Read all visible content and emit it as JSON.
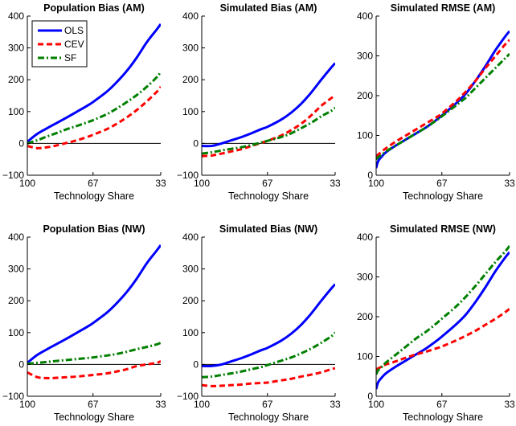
{
  "chart_data": [
    {
      "type": "line",
      "title": "Population Bias (AM)",
      "xlabel": "Technology Share",
      "ylabel": "",
      "x_ticks": [
        100,
        67,
        33
      ],
      "x_range": [
        100,
        33
      ],
      "ylim": [
        -100,
        400
      ],
      "y_ticks": [
        -100,
        0,
        100,
        200,
        300,
        400
      ],
      "zero_line": true,
      "legend": {
        "placement": "top-left",
        "entries": [
          "OLS",
          "CEV",
          "SF"
        ]
      },
      "x": [
        100,
        95,
        90,
        85,
        80,
        75,
        70,
        67,
        60,
        55,
        50,
        45,
        40,
        35,
        33
      ],
      "series": [
        {
          "name": "OLS",
          "values": [
            5,
            30,
            48,
            65,
            82,
            100,
            118,
            130,
            163,
            193,
            228,
            270,
            318,
            358,
            375
          ]
        },
        {
          "name": "CEV",
          "values": [
            -8,
            -15,
            -12,
            -6,
            2,
            10,
            20,
            27,
            45,
            62,
            82,
            105,
            132,
            162,
            178
          ]
        },
        {
          "name": "SF",
          "values": [
            0,
            10,
            22,
            33,
            45,
            55,
            66,
            73,
            92,
            110,
            130,
            152,
            178,
            208,
            225
          ]
        }
      ]
    },
    {
      "type": "line",
      "title": "Simulated Bias (AM)",
      "xlabel": "Technology Share",
      "ylabel": "",
      "x_ticks": [
        100,
        67,
        33
      ],
      "x_range": [
        100,
        33
      ],
      "ylim": [
        -100,
        400
      ],
      "y_ticks": [
        -100,
        0,
        100,
        200,
        300,
        400
      ],
      "zero_line": true,
      "x": [
        100,
        95,
        90,
        85,
        80,
        75,
        70,
        67,
        60,
        55,
        50,
        45,
        40,
        35,
        33
      ],
      "series": [
        {
          "name": "OLS",
          "values": [
            -8,
            -8,
            0,
            10,
            20,
            32,
            45,
            52,
            75,
            97,
            125,
            160,
            200,
            238,
            252
          ]
        },
        {
          "name": "CEV",
          "values": [
            -40,
            -38,
            -32,
            -25,
            -18,
            -8,
            2,
            8,
            25,
            42,
            62,
            88,
            118,
            142,
            152
          ]
        },
        {
          "name": "SF",
          "values": [
            -32,
            -28,
            -22,
            -17,
            -12,
            -5,
            3,
            8,
            20,
            32,
            48,
            65,
            85,
            102,
            112
          ]
        }
      ]
    },
    {
      "type": "line",
      "title": "Simulated RMSE (AM)",
      "xlabel": "Technology Share",
      "ylabel": "",
      "x_ticks": [
        100,
        67,
        33
      ],
      "x_range": [
        100,
        33
      ],
      "ylim": [
        0,
        400
      ],
      "y_ticks": [
        0,
        100,
        200,
        300,
        400
      ],
      "zero_line": false,
      "x": [
        100,
        99,
        97,
        95,
        90,
        85,
        80,
        75,
        70,
        67,
        60,
        55,
        50,
        45,
        40,
        35,
        33
      ],
      "series": [
        {
          "name": "OLS",
          "values": [
            18,
            35,
            48,
            58,
            75,
            90,
            105,
            120,
            138,
            150,
            180,
            205,
            238,
            275,
            315,
            350,
            362
          ]
        },
        {
          "name": "CEV",
          "values": [
            48,
            52,
            60,
            68,
            85,
            100,
            115,
            130,
            145,
            155,
            185,
            210,
            238,
            270,
            300,
            330,
            340
          ]
        },
        {
          "name": "SF",
          "values": [
            40,
            45,
            52,
            60,
            75,
            90,
            105,
            120,
            137,
            148,
            175,
            195,
            220,
            245,
            270,
            295,
            305
          ]
        }
      ]
    },
    {
      "type": "line",
      "title": "Population Bias (NW)",
      "xlabel": "Technology Share",
      "ylabel": "",
      "x_ticks": [
        100,
        67,
        33
      ],
      "x_range": [
        100,
        33
      ],
      "ylim": [
        -100,
        400
      ],
      "y_ticks": [
        -100,
        0,
        100,
        200,
        300,
        400
      ],
      "zero_line": true,
      "x": [
        100,
        95,
        90,
        85,
        80,
        75,
        70,
        67,
        60,
        55,
        50,
        45,
        40,
        35,
        33
      ],
      "series": [
        {
          "name": "OLS",
          "values": [
            5,
            30,
            48,
            65,
            82,
            100,
            118,
            130,
            163,
            193,
            228,
            270,
            318,
            358,
            375
          ]
        },
        {
          "name": "CEV",
          "values": [
            -25,
            -40,
            -43,
            -42,
            -40,
            -38,
            -35,
            -33,
            -28,
            -22,
            -15,
            -5,
            0,
            5,
            10
          ]
        },
        {
          "name": "SF",
          "values": [
            2,
            5,
            8,
            11,
            14,
            17,
            20,
            22,
            28,
            33,
            40,
            48,
            55,
            63,
            68
          ]
        }
      ]
    },
    {
      "type": "line",
      "title": "Simulated Bias (NW)",
      "xlabel": "Technology Share",
      "ylabel": "",
      "x_ticks": [
        100,
        67,
        33
      ],
      "x_range": [
        100,
        33
      ],
      "ylim": [
        -100,
        400
      ],
      "y_ticks": [
        -100,
        0,
        100,
        200,
        300,
        400
      ],
      "zero_line": true,
      "x": [
        100,
        95,
        90,
        85,
        80,
        75,
        70,
        67,
        60,
        55,
        50,
        45,
        40,
        35,
        33
      ],
      "series": [
        {
          "name": "OLS",
          "values": [
            -5,
            -5,
            0,
            10,
            20,
            32,
            45,
            52,
            75,
            97,
            125,
            160,
            200,
            238,
            252
          ]
        },
        {
          "name": "CEV",
          "values": [
            -65,
            -68,
            -67,
            -65,
            -63,
            -60,
            -58,
            -57,
            -50,
            -45,
            -38,
            -32,
            -25,
            -15,
            -12
          ]
        },
        {
          "name": "SF",
          "values": [
            -40,
            -38,
            -33,
            -28,
            -22,
            -15,
            -8,
            -2,
            12,
            22,
            35,
            50,
            68,
            88,
            100
          ]
        }
      ]
    },
    {
      "type": "line",
      "title": "Simulated RMSE (NW)",
      "xlabel": "Technology Share",
      "ylabel": "",
      "x_ticks": [
        100,
        67,
        33
      ],
      "x_range": [
        100,
        33
      ],
      "ylim": [
        0,
        400
      ],
      "y_ticks": [
        0,
        100,
        200,
        300,
        400
      ],
      "zero_line": false,
      "x": [
        100,
        99,
        97,
        95,
        90,
        85,
        80,
        75,
        70,
        67,
        60,
        55,
        50,
        45,
        40,
        35,
        33
      ],
      "series": [
        {
          "name": "OLS",
          "values": [
            18,
            35,
            48,
            58,
            75,
            90,
            105,
            120,
            138,
            150,
            180,
            205,
            238,
            275,
            315,
            350,
            362
          ]
        },
        {
          "name": "CEV",
          "values": [
            68,
            70,
            75,
            80,
            88,
            97,
            105,
            112,
            120,
            125,
            140,
            152,
            165,
            180,
            195,
            212,
            220
          ]
        },
        {
          "name": "SF",
          "values": [
            55,
            65,
            75,
            85,
            105,
            125,
            145,
            162,
            182,
            195,
            225,
            250,
            278,
            308,
            338,
            365,
            378
          ]
        }
      ]
    }
  ],
  "style": {
    "colors": {
      "OLS": "#0000ff",
      "CEV": "#ff0000",
      "SF": "#007f00"
    },
    "dashes": {
      "OLS": "",
      "CEV": "7,4",
      "SF": "8,3,2,3"
    }
  }
}
